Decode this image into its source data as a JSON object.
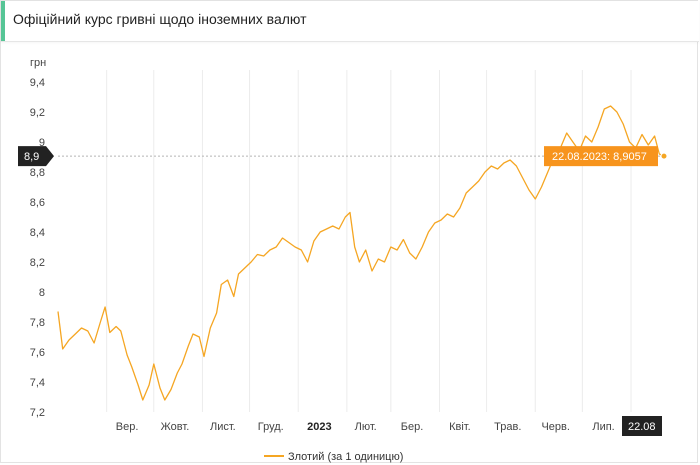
{
  "header": {
    "title": "Офіційний курс гривні щодо іноземних валют"
  },
  "colors": {
    "series": "#f5a623",
    "badge": "#f7941d",
    "axis_badge": "#222222"
  },
  "chart_data": {
    "type": "line",
    "ylabel": "грн",
    "ylim": [
      7.2,
      9.4
    ],
    "yticks": [
      "9,4",
      "9,2",
      "9",
      "8,8",
      "8,6",
      "8,4",
      "8,2",
      "8",
      "7,8",
      "7,6",
      "7,4",
      "7,2"
    ],
    "xticks": [
      "Вер.",
      "Жовт.",
      "Лист.",
      "Груд.",
      "2023",
      "Лют.",
      "Бер.",
      "Квіт.",
      "Трав.",
      "Черв.",
      "Лип."
    ],
    "xtick_bold": "2023",
    "grid": "vertical",
    "legend": "bottom",
    "series": [
      {
        "name": "Злотий (за 1 одиницю)",
        "points": [
          [
            "2022-08-01",
            7.87
          ],
          [
            "2022-08-04",
            7.62
          ],
          [
            "2022-08-08",
            7.68
          ],
          [
            "2022-08-12",
            7.72
          ],
          [
            "2022-08-16",
            7.76
          ],
          [
            "2022-08-20",
            7.74
          ],
          [
            "2022-08-24",
            7.66
          ],
          [
            "2022-08-28",
            7.8
          ],
          [
            "2022-08-31",
            7.9
          ],
          [
            "2022-09-03",
            7.73
          ],
          [
            "2022-09-07",
            7.77
          ],
          [
            "2022-09-10",
            7.74
          ],
          [
            "2022-09-14",
            7.58
          ],
          [
            "2022-09-17",
            7.5
          ],
          [
            "2022-09-21",
            7.38
          ],
          [
            "2022-09-24",
            7.28
          ],
          [
            "2022-09-28",
            7.38
          ],
          [
            "2022-10-01",
            7.52
          ],
          [
            "2022-10-05",
            7.36
          ],
          [
            "2022-10-08",
            7.28
          ],
          [
            "2022-10-12",
            7.35
          ],
          [
            "2022-10-16",
            7.46
          ],
          [
            "2022-10-19",
            7.52
          ],
          [
            "2022-10-23",
            7.64
          ],
          [
            "2022-10-26",
            7.72
          ],
          [
            "2022-10-30",
            7.7
          ],
          [
            "2022-11-02",
            7.57
          ],
          [
            "2022-11-06",
            7.76
          ],
          [
            "2022-11-10",
            7.86
          ],
          [
            "2022-11-13",
            8.05
          ],
          [
            "2022-11-17",
            8.08
          ],
          [
            "2022-11-21",
            7.97
          ],
          [
            "2022-11-24",
            8.12
          ],
          [
            "2022-11-28",
            8.16
          ],
          [
            "2022-12-02",
            8.2
          ],
          [
            "2022-12-06",
            8.25
          ],
          [
            "2022-12-10",
            8.24
          ],
          [
            "2022-12-14",
            8.28
          ],
          [
            "2022-12-18",
            8.3
          ],
          [
            "2022-12-22",
            8.36
          ],
          [
            "2022-12-26",
            8.33
          ],
          [
            "2022-12-30",
            8.3
          ],
          [
            "2023-01-03",
            8.28
          ],
          [
            "2023-01-07",
            8.2
          ],
          [
            "2023-01-11",
            8.34
          ],
          [
            "2023-01-15",
            8.4
          ],
          [
            "2023-01-19",
            8.42
          ],
          [
            "2023-01-23",
            8.44
          ],
          [
            "2023-01-27",
            8.42
          ],
          [
            "2023-01-31",
            8.5
          ],
          [
            "2023-02-03",
            8.53
          ],
          [
            "2023-02-06",
            8.3
          ],
          [
            "2023-02-09",
            8.2
          ],
          [
            "2023-02-13",
            8.28
          ],
          [
            "2023-02-17",
            8.14
          ],
          [
            "2023-02-21",
            8.22
          ],
          [
            "2023-02-25",
            8.2
          ],
          [
            "2023-03-01",
            8.3
          ],
          [
            "2023-03-05",
            8.28
          ],
          [
            "2023-03-09",
            8.35
          ],
          [
            "2023-03-13",
            8.26
          ],
          [
            "2023-03-17",
            8.22
          ],
          [
            "2023-03-21",
            8.3
          ],
          [
            "2023-03-25",
            8.4
          ],
          [
            "2023-03-29",
            8.46
          ],
          [
            "2023-04-02",
            8.48
          ],
          [
            "2023-04-06",
            8.52
          ],
          [
            "2023-04-10",
            8.5
          ],
          [
            "2023-04-14",
            8.56
          ],
          [
            "2023-04-18",
            8.66
          ],
          [
            "2023-04-22",
            8.7
          ],
          [
            "2023-04-26",
            8.74
          ],
          [
            "2023-04-30",
            8.8
          ],
          [
            "2023-05-04",
            8.84
          ],
          [
            "2023-05-08",
            8.82
          ],
          [
            "2023-05-12",
            8.86
          ],
          [
            "2023-05-16",
            8.88
          ],
          [
            "2023-05-20",
            8.84
          ],
          [
            "2023-05-24",
            8.76
          ],
          [
            "2023-05-28",
            8.68
          ],
          [
            "2023-06-01",
            8.62
          ],
          [
            "2023-06-05",
            8.7
          ],
          [
            "2023-06-09",
            8.8
          ],
          [
            "2023-06-13",
            8.9
          ],
          [
            "2023-06-17",
            8.96
          ],
          [
            "2023-06-21",
            9.06
          ],
          [
            "2023-06-25",
            9.0
          ],
          [
            "2023-06-29",
            8.94
          ],
          [
            "2023-07-03",
            9.04
          ],
          [
            "2023-07-07",
            9.0
          ],
          [
            "2023-07-11",
            9.1
          ],
          [
            "2023-07-15",
            9.22
          ],
          [
            "2023-07-19",
            9.24
          ],
          [
            "2023-07-23",
            9.2
          ],
          [
            "2023-07-27",
            9.12
          ],
          [
            "2023-07-31",
            9.0
          ],
          [
            "2023-08-04",
            8.96
          ],
          [
            "2023-08-08",
            9.05
          ],
          [
            "2023-08-12",
            8.98
          ],
          [
            "2023-08-16",
            9.04
          ],
          [
            "2023-08-19",
            8.92
          ],
          [
            "2023-08-22",
            8.9057
          ]
        ]
      }
    ],
    "crosshair": {
      "value_label": "8,9",
      "date_label": "22.08"
    },
    "tooltip": "22.08.2023: 8,9057"
  }
}
